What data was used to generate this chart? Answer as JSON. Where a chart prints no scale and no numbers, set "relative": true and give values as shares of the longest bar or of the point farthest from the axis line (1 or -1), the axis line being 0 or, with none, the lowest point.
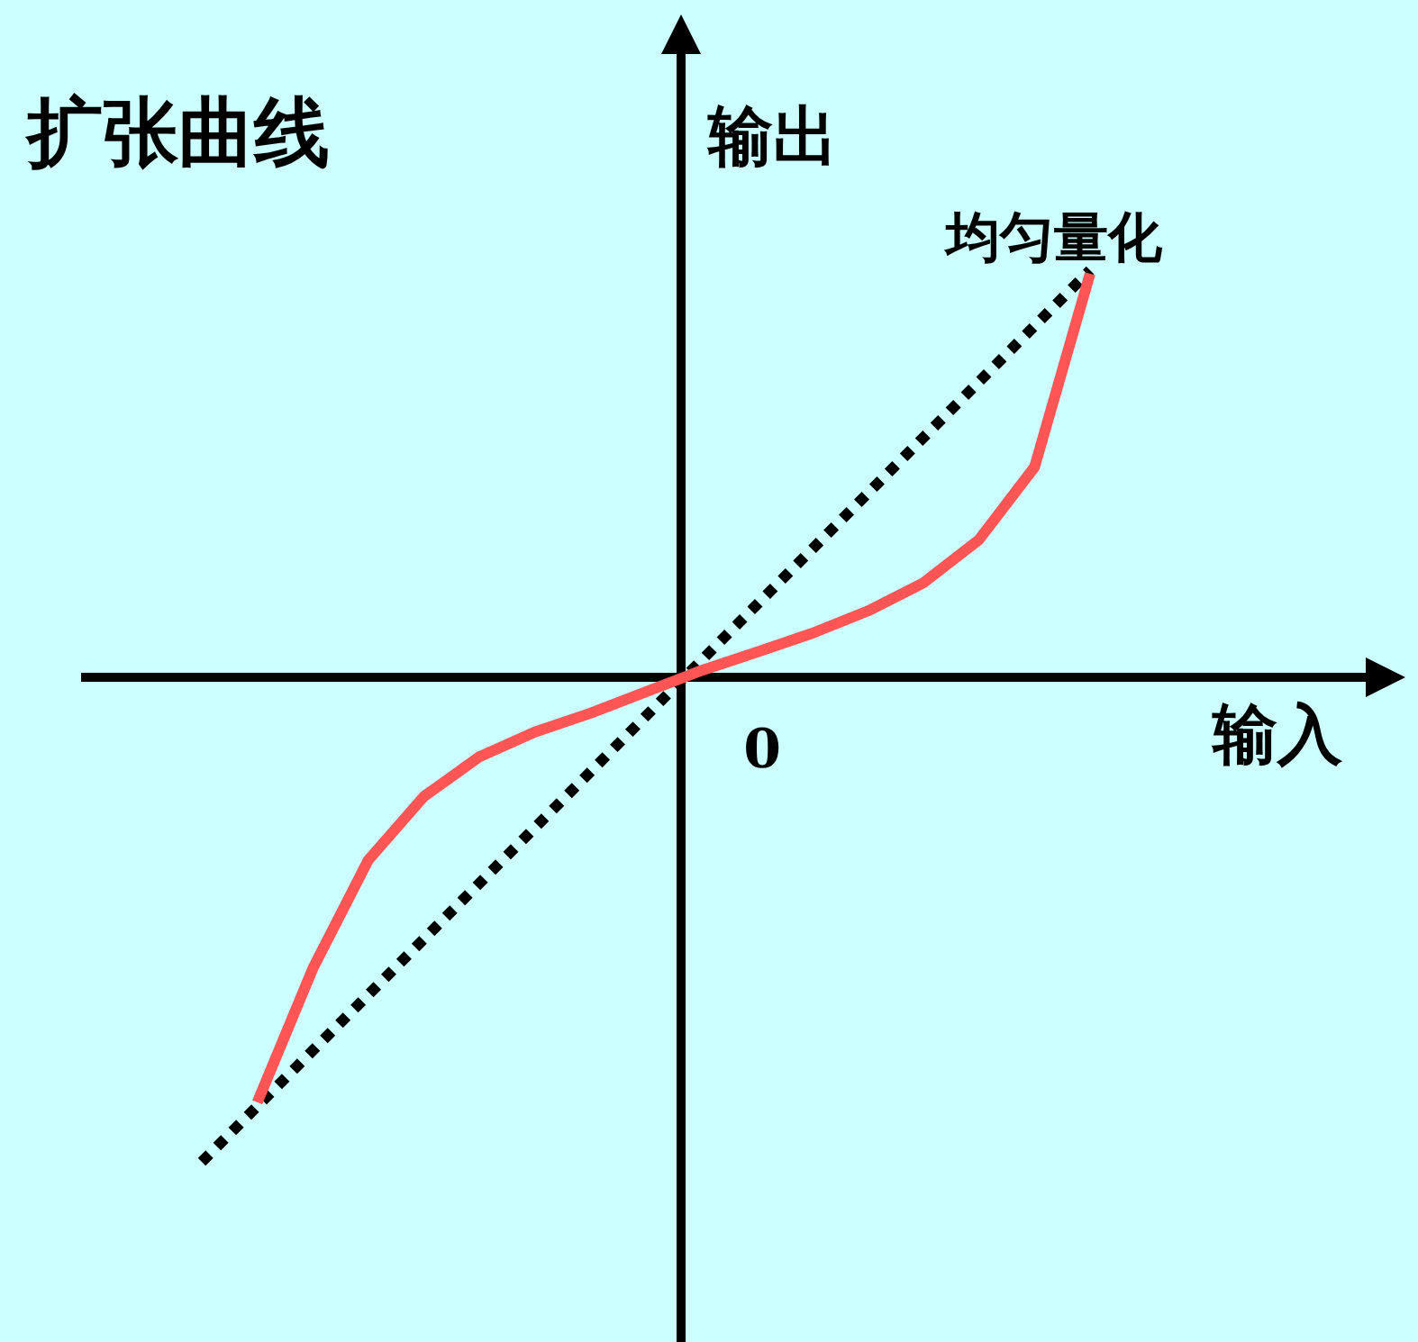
{
  "chart_data": {
    "type": "line",
    "title": "扩张曲线",
    "xlabel": "输入",
    "ylabel": "输出",
    "relative": true,
    "annotations": [
      "0"
    ],
    "categories": [
      null,
      null,
      null,
      null,
      null,
      null,
      null,
      null,
      null,
      null,
      null,
      null,
      null,
      null,
      null,
      null,
      null
    ],
    "series": [
      {
        "name": "均匀量化",
        "color": "#000000",
        "line_style": "dotted",
        "values": [
          -1.0,
          -0.885,
          -0.77,
          -0.655,
          -0.54,
          -0.425,
          -0.31,
          -0.195,
          -0.08,
          0.035,
          0.15,
          0.265,
          0.38,
          0.495,
          0.61,
          0.725,
          0.84
        ]
      },
      {
        "color": "#ff5555",
        "line_style": "solid",
        "values": [
          null,
          -0.877,
          -0.601,
          -0.377,
          -0.246,
          -0.164,
          -0.113,
          -0.074,
          -0.03,
          0.014,
          0.052,
          0.091,
          0.137,
          0.195,
          0.284,
          0.434,
          0.833
        ]
      }
    ]
  }
}
